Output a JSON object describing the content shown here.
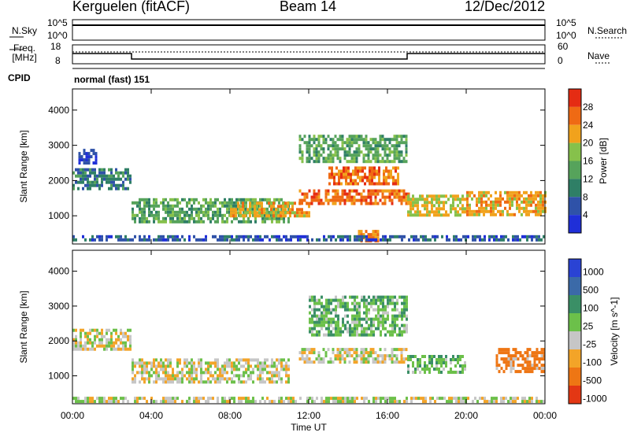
{
  "header": {
    "station": "Kerguelen (fitACF)",
    "beam": "Beam 14",
    "date": "12/Dec/2012"
  },
  "strip": {
    "nsky_label": "N.Sky",
    "nsky_ticks": [
      "10^5",
      "10^0"
    ],
    "nsearch_label": "N.Search",
    "nsearch_ticks": [
      "10^5",
      "10^0"
    ],
    "freq_label": "Freq.",
    "freq_unit": "[MHz]",
    "freq_ticks": [
      "18",
      "8"
    ],
    "nave_label": "Nave",
    "nave_ticks": [
      "60",
      "0"
    ],
    "cpid_label": "CPID",
    "cpid_value": "normal (fast) 151"
  },
  "colors": {
    "power": [
      "#1f2fd8",
      "#2f52a8",
      "#2f7f66",
      "#56a35b",
      "#86c14b",
      "#f1a21c",
      "#ef6a14",
      "#e52c13"
    ],
    "velocity": [
      "#2a43d4",
      "#3b6aa8",
      "#3a8f66",
      "#6cc04a",
      "#c6c6c6",
      "#f3a428",
      "#ee7614",
      "#e33714"
    ]
  },
  "chart_data": [
    {
      "type": "heatmap",
      "name": "Power",
      "x": [
        "00:00",
        "04:00",
        "08:00",
        "12:00",
        "16:00",
        "20:00",
        "00:00"
      ],
      "ylabel": "Slant Range [km]",
      "yticks": [
        1000,
        2000,
        3000,
        4000
      ],
      "ylim": [
        200,
        4600
      ],
      "colorbar_label": "Power [dB]",
      "colorbar_ticks": [
        4,
        8,
        12,
        16,
        20,
        24,
        28
      ],
      "colorbar_range": [
        0,
        32
      ],
      "regions": [
        {
          "t": [
            0.0,
            3.0
          ],
          "range": [
            1800,
            2350
          ],
          "level": 10
        },
        {
          "t": [
            0.3,
            1.2
          ],
          "range": [
            2500,
            2900
          ],
          "level": 4
        },
        {
          "t": [
            3.0,
            11.0
          ],
          "range": [
            850,
            1500
          ],
          "level": 14
        },
        {
          "t": [
            8.0,
            12.0
          ],
          "range": [
            1000,
            1400
          ],
          "level": 22
        },
        {
          "t": [
            11.5,
            17.2
          ],
          "range": [
            1350,
            1750
          ],
          "level": 26
        },
        {
          "t": [
            11.5,
            17.0
          ],
          "range": [
            2500,
            3300
          ],
          "level": 14
        },
        {
          "t": [
            13.0,
            16.5
          ],
          "range": [
            1950,
            2400
          ],
          "level": 26
        },
        {
          "t": [
            17.0,
            20.0
          ],
          "range": [
            1000,
            1600
          ],
          "level": 20
        },
        {
          "t": [
            20.0,
            24.0
          ],
          "range": [
            1000,
            1700
          ],
          "level": 22
        },
        {
          "t": [
            14.5,
            15.5
          ],
          "range": [
            300,
            600
          ],
          "level": 24
        },
        {
          "t": [
            0.0,
            24.0
          ],
          "range": [
            280,
            450
          ],
          "level": 6
        }
      ]
    },
    {
      "type": "heatmap",
      "name": "Velocity",
      "x": [
        "00:00",
        "04:00",
        "08:00",
        "12:00",
        "16:00",
        "20:00",
        "00:00"
      ],
      "xlabel": "Time UT",
      "ylabel": "Slant Range [km]",
      "yticks": [
        1000,
        2000,
        3000,
        4000
      ],
      "ylim": [
        200,
        4600
      ],
      "colorbar_label": "Velocity [m s^-1]",
      "colorbar_ticks": [
        1000,
        500,
        100,
        25,
        -25,
        -100,
        -500,
        -1000
      ],
      "regions": [
        {
          "t": [
            0.0,
            3.0
          ],
          "range": [
            1800,
            2350
          ],
          "level": 0
        },
        {
          "t": [
            3.0,
            11.0
          ],
          "range": [
            850,
            1500
          ],
          "level": 0
        },
        {
          "t": [
            11.5,
            17.0
          ],
          "range": [
            1400,
            1800
          ],
          "level": 0
        },
        {
          "t": [
            12.0,
            17.0
          ],
          "range": [
            2200,
            3300
          ],
          "level": 150
        },
        {
          "t": [
            17.0,
            20.0
          ],
          "range": [
            1100,
            1600
          ],
          "level": 120
        },
        {
          "t": [
            21.5,
            24.0
          ],
          "range": [
            1100,
            1800
          ],
          "level": -300
        },
        {
          "t": [
            0.0,
            24.0
          ],
          "range": [
            250,
            400
          ],
          "level": 0
        }
      ]
    }
  ]
}
